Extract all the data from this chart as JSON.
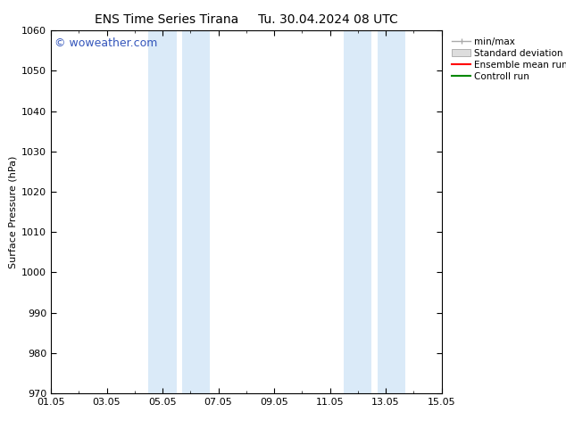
{
  "title_left": "ENS Time Series Tirana",
  "title_right": "Tu. 30.04.2024 08 UTC",
  "ylabel": "Surface Pressure (hPa)",
  "ylim": [
    970,
    1060
  ],
  "yticks": [
    970,
    980,
    990,
    1000,
    1010,
    1020,
    1030,
    1040,
    1050,
    1060
  ],
  "xtick_labels": [
    "01.05",
    "03.05",
    "05.05",
    "07.05",
    "09.05",
    "11.05",
    "13.05",
    "15.05"
  ],
  "xtick_positions": [
    0,
    2,
    4,
    6,
    8,
    10,
    12,
    14
  ],
  "xlim": [
    0,
    14
  ],
  "shaded_regions": [
    {
      "x_start": 3.5,
      "x_end": 4.5
    },
    {
      "x_start": 4.7,
      "x_end": 5.7
    },
    {
      "x_start": 10.5,
      "x_end": 11.5
    },
    {
      "x_start": 11.7,
      "x_end": 12.7
    }
  ],
  "shaded_color": "#daeaf8",
  "background_color": "#ffffff",
  "watermark_text": "© woweather.com",
  "watermark_color": "#3355bb",
  "legend_minmax_color": "#aaaaaa",
  "legend_std_color": "#dddddd",
  "legend_ens_color": "#ff0000",
  "legend_ctrl_color": "#008800",
  "grid_color": "#cccccc",
  "axis_font_size": 8,
  "title_font_size": 10,
  "watermark_font_size": 9,
  "legend_font_size": 7.5
}
